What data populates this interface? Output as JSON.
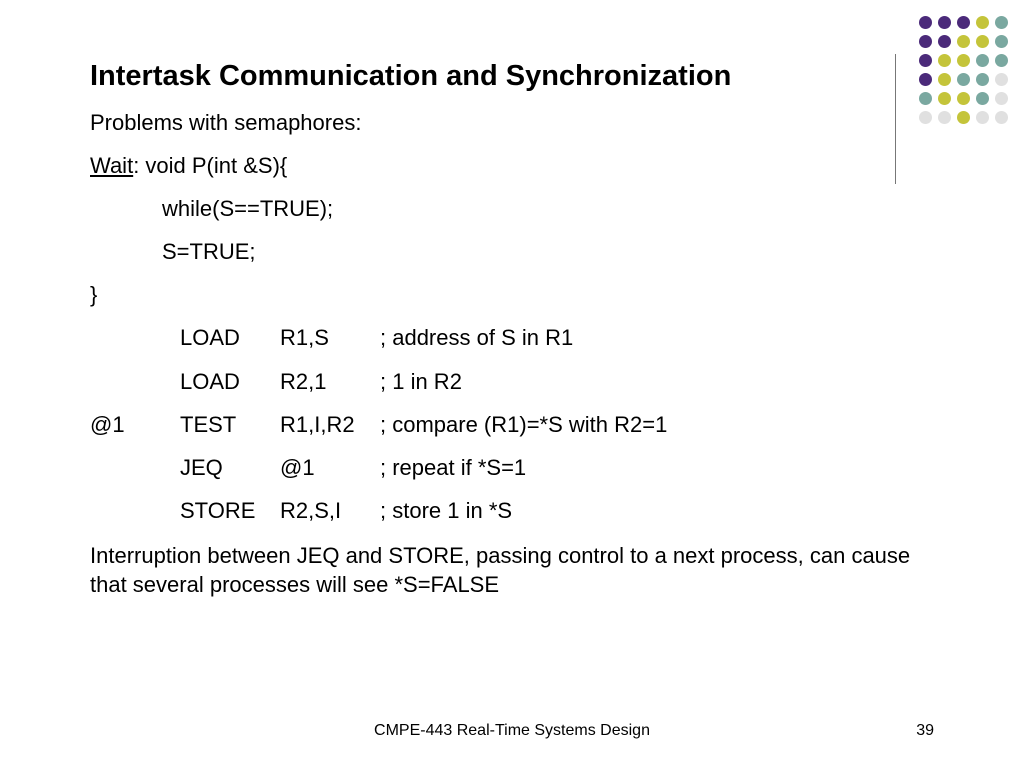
{
  "title": "Intertask Communication and Synchronization",
  "intro": "Problems with semaphores:",
  "code": {
    "wait_label": "Wait",
    "wait_rest": ": void P(int &S){",
    "while_line": "while(S==TRUE);",
    "assign_line": "S=TRUE;",
    "close_brace": "}"
  },
  "asm": [
    {
      "label": "",
      "op": "LOAD",
      "args": "R1,S",
      "comment": "; address of S in R1"
    },
    {
      "label": "",
      "op": "LOAD",
      "args": "R2,1",
      "comment": "; 1 in R2"
    },
    {
      "label": "@1",
      "op": "TEST",
      "args": "R1,I,R2",
      "comment": "; compare (R1)=*S with R2=1"
    },
    {
      "label": "",
      "op": "JEQ",
      "args": "@1",
      "comment": "; repeat if *S=1"
    },
    {
      "label": "",
      "op": "STORE",
      "args": "R2,S,I",
      "comment": "; store 1 in *S"
    }
  ],
  "conclusion": "Interruption between JEQ and STORE, passing control to a next process, can cause that several processes will see *S=FALSE",
  "footer": "CMPE-443 Real-Time Systems Design",
  "page": "39",
  "dots": {
    "purple": "#4b2a7a",
    "olive": "#c4c43a",
    "teal": "#7aa8a0",
    "lgray": "#e0e0e0",
    "grid": [
      [
        "purple",
        "purple",
        "purple",
        "olive",
        "teal"
      ],
      [
        "purple",
        "purple",
        "olive",
        "olive",
        "teal"
      ],
      [
        "purple",
        "olive",
        "olive",
        "teal",
        "teal"
      ],
      [
        "purple",
        "olive",
        "teal",
        "teal",
        "lgray"
      ],
      [
        "teal",
        "olive",
        "olive",
        "teal",
        "lgray"
      ],
      [
        "lgray",
        "lgray",
        "olive",
        "lgray",
        "lgray"
      ]
    ]
  }
}
